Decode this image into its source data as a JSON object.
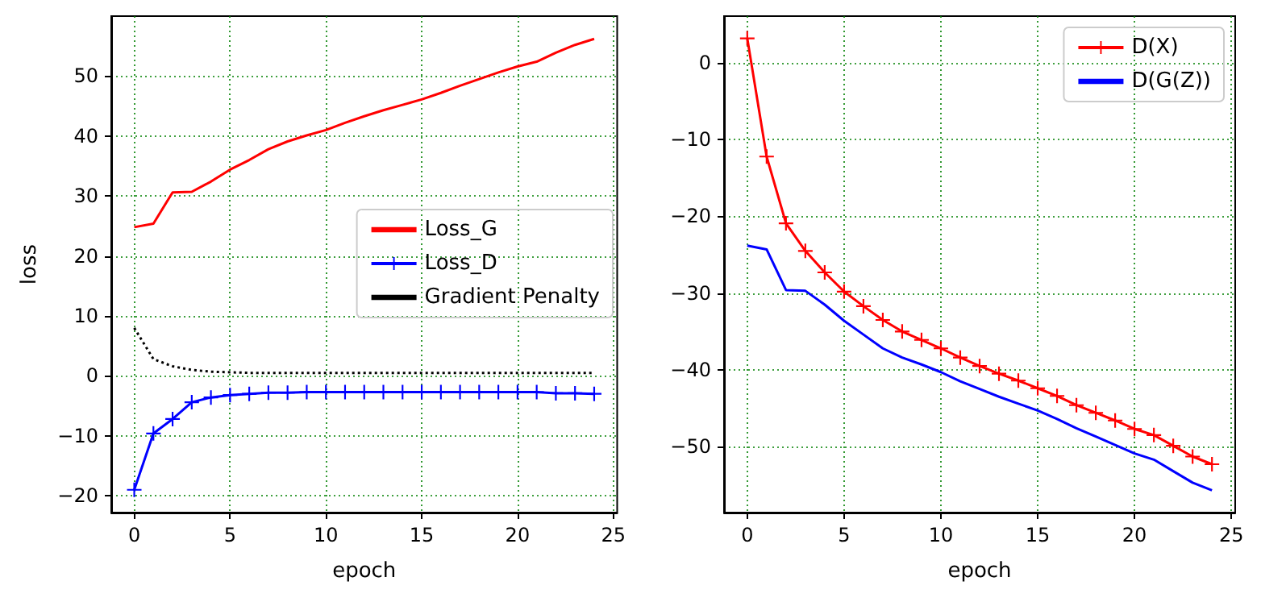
{
  "chart_data": [
    {
      "type": "line",
      "xlabel": "epoch",
      "ylabel": "loss",
      "x": [
        0,
        1,
        2,
        3,
        4,
        5,
        6,
        7,
        8,
        9,
        10,
        11,
        12,
        13,
        14,
        15,
        16,
        17,
        18,
        19,
        20,
        21,
        22,
        23,
        24
      ],
      "series": [
        {
          "name": "Loss_G",
          "color": "#ff0000",
          "values": [
            24.8,
            25.4,
            30.6,
            30.7,
            32.4,
            34.4,
            36.0,
            37.8,
            39.1,
            40.1,
            41.0,
            42.2,
            43.3,
            44.3,
            45.2,
            46.1,
            47.2,
            48.4,
            49.5,
            50.6,
            51.6,
            52.4,
            53.9,
            55.2,
            56.2
          ]
        },
        {
          "name": "Loss_D",
          "color": "#0000ff",
          "marker": "cross",
          "values": [
            -19.0,
            -9.6,
            -7.2,
            -4.4,
            -3.6,
            -3.2,
            -3.0,
            -2.8,
            -2.8,
            -2.7,
            -2.7,
            -2.7,
            -2.7,
            -2.7,
            -2.7,
            -2.7,
            -2.7,
            -2.7,
            -2.7,
            -2.7,
            -2.7,
            -2.7,
            -2.9,
            -2.9,
            -3.0
          ]
        },
        {
          "name": "Gradient Penalty",
          "color": "#000000",
          "line_style": "dotted",
          "values": [
            8.0,
            2.8,
            1.6,
            1.0,
            0.7,
            0.6,
            0.5,
            0.5,
            0.5,
            0.5,
            0.5,
            0.5,
            0.5,
            0.5,
            0.5,
            0.5,
            0.5,
            0.5,
            0.5,
            0.5,
            0.5,
            0.5,
            0.5,
            0.5,
            0.5
          ]
        }
      ],
      "xlim": [
        -1.2,
        25.2
      ],
      "xticks": [
        0,
        5,
        10,
        15,
        20,
        25
      ],
      "ylim": [
        -22.8,
        60
      ],
      "yticks": [
        -20,
        -10,
        0,
        10,
        20,
        30,
        40,
        50
      ],
      "grid": true,
      "legend": "center right"
    },
    {
      "type": "line",
      "xlabel": "epoch",
      "x": [
        0,
        1,
        2,
        3,
        4,
        5,
        6,
        7,
        8,
        9,
        10,
        11,
        12,
        13,
        14,
        15,
        16,
        17,
        18,
        19,
        20,
        21,
        22,
        23,
        24
      ],
      "series": [
        {
          "name": "D(X)",
          "color": "#ff0000",
          "marker": "cross",
          "values": [
            3.2,
            -12.2,
            -20.9,
            -24.5,
            -27.3,
            -29.8,
            -31.7,
            -33.5,
            -35.0,
            -36.1,
            -37.2,
            -38.4,
            -39.5,
            -40.5,
            -41.4,
            -42.4,
            -43.4,
            -44.6,
            -45.6,
            -46.6,
            -47.7,
            -48.5,
            -49.9,
            -51.3,
            -52.3
          ]
        },
        {
          "name": "D(G(Z))",
          "color": "#0000ff",
          "values": [
            -23.8,
            -24.3,
            -29.6,
            -29.7,
            -31.5,
            -33.6,
            -35.4,
            -37.2,
            -38.4,
            -39.3,
            -40.3,
            -41.5,
            -42.5,
            -43.5,
            -44.4,
            -45.3,
            -46.4,
            -47.6,
            -48.7,
            -49.8,
            -50.9,
            -51.7,
            -53.2,
            -54.7,
            -55.7
          ]
        }
      ],
      "xlim": [
        -1.2,
        25.2
      ],
      "xticks": [
        0,
        5,
        10,
        15,
        20,
        25
      ],
      "ylim": [
        -58.6,
        6.1
      ],
      "yticks": [
        -50,
        -40,
        -30,
        -20,
        -10,
        0
      ],
      "grid": true,
      "legend": "top right"
    }
  ]
}
